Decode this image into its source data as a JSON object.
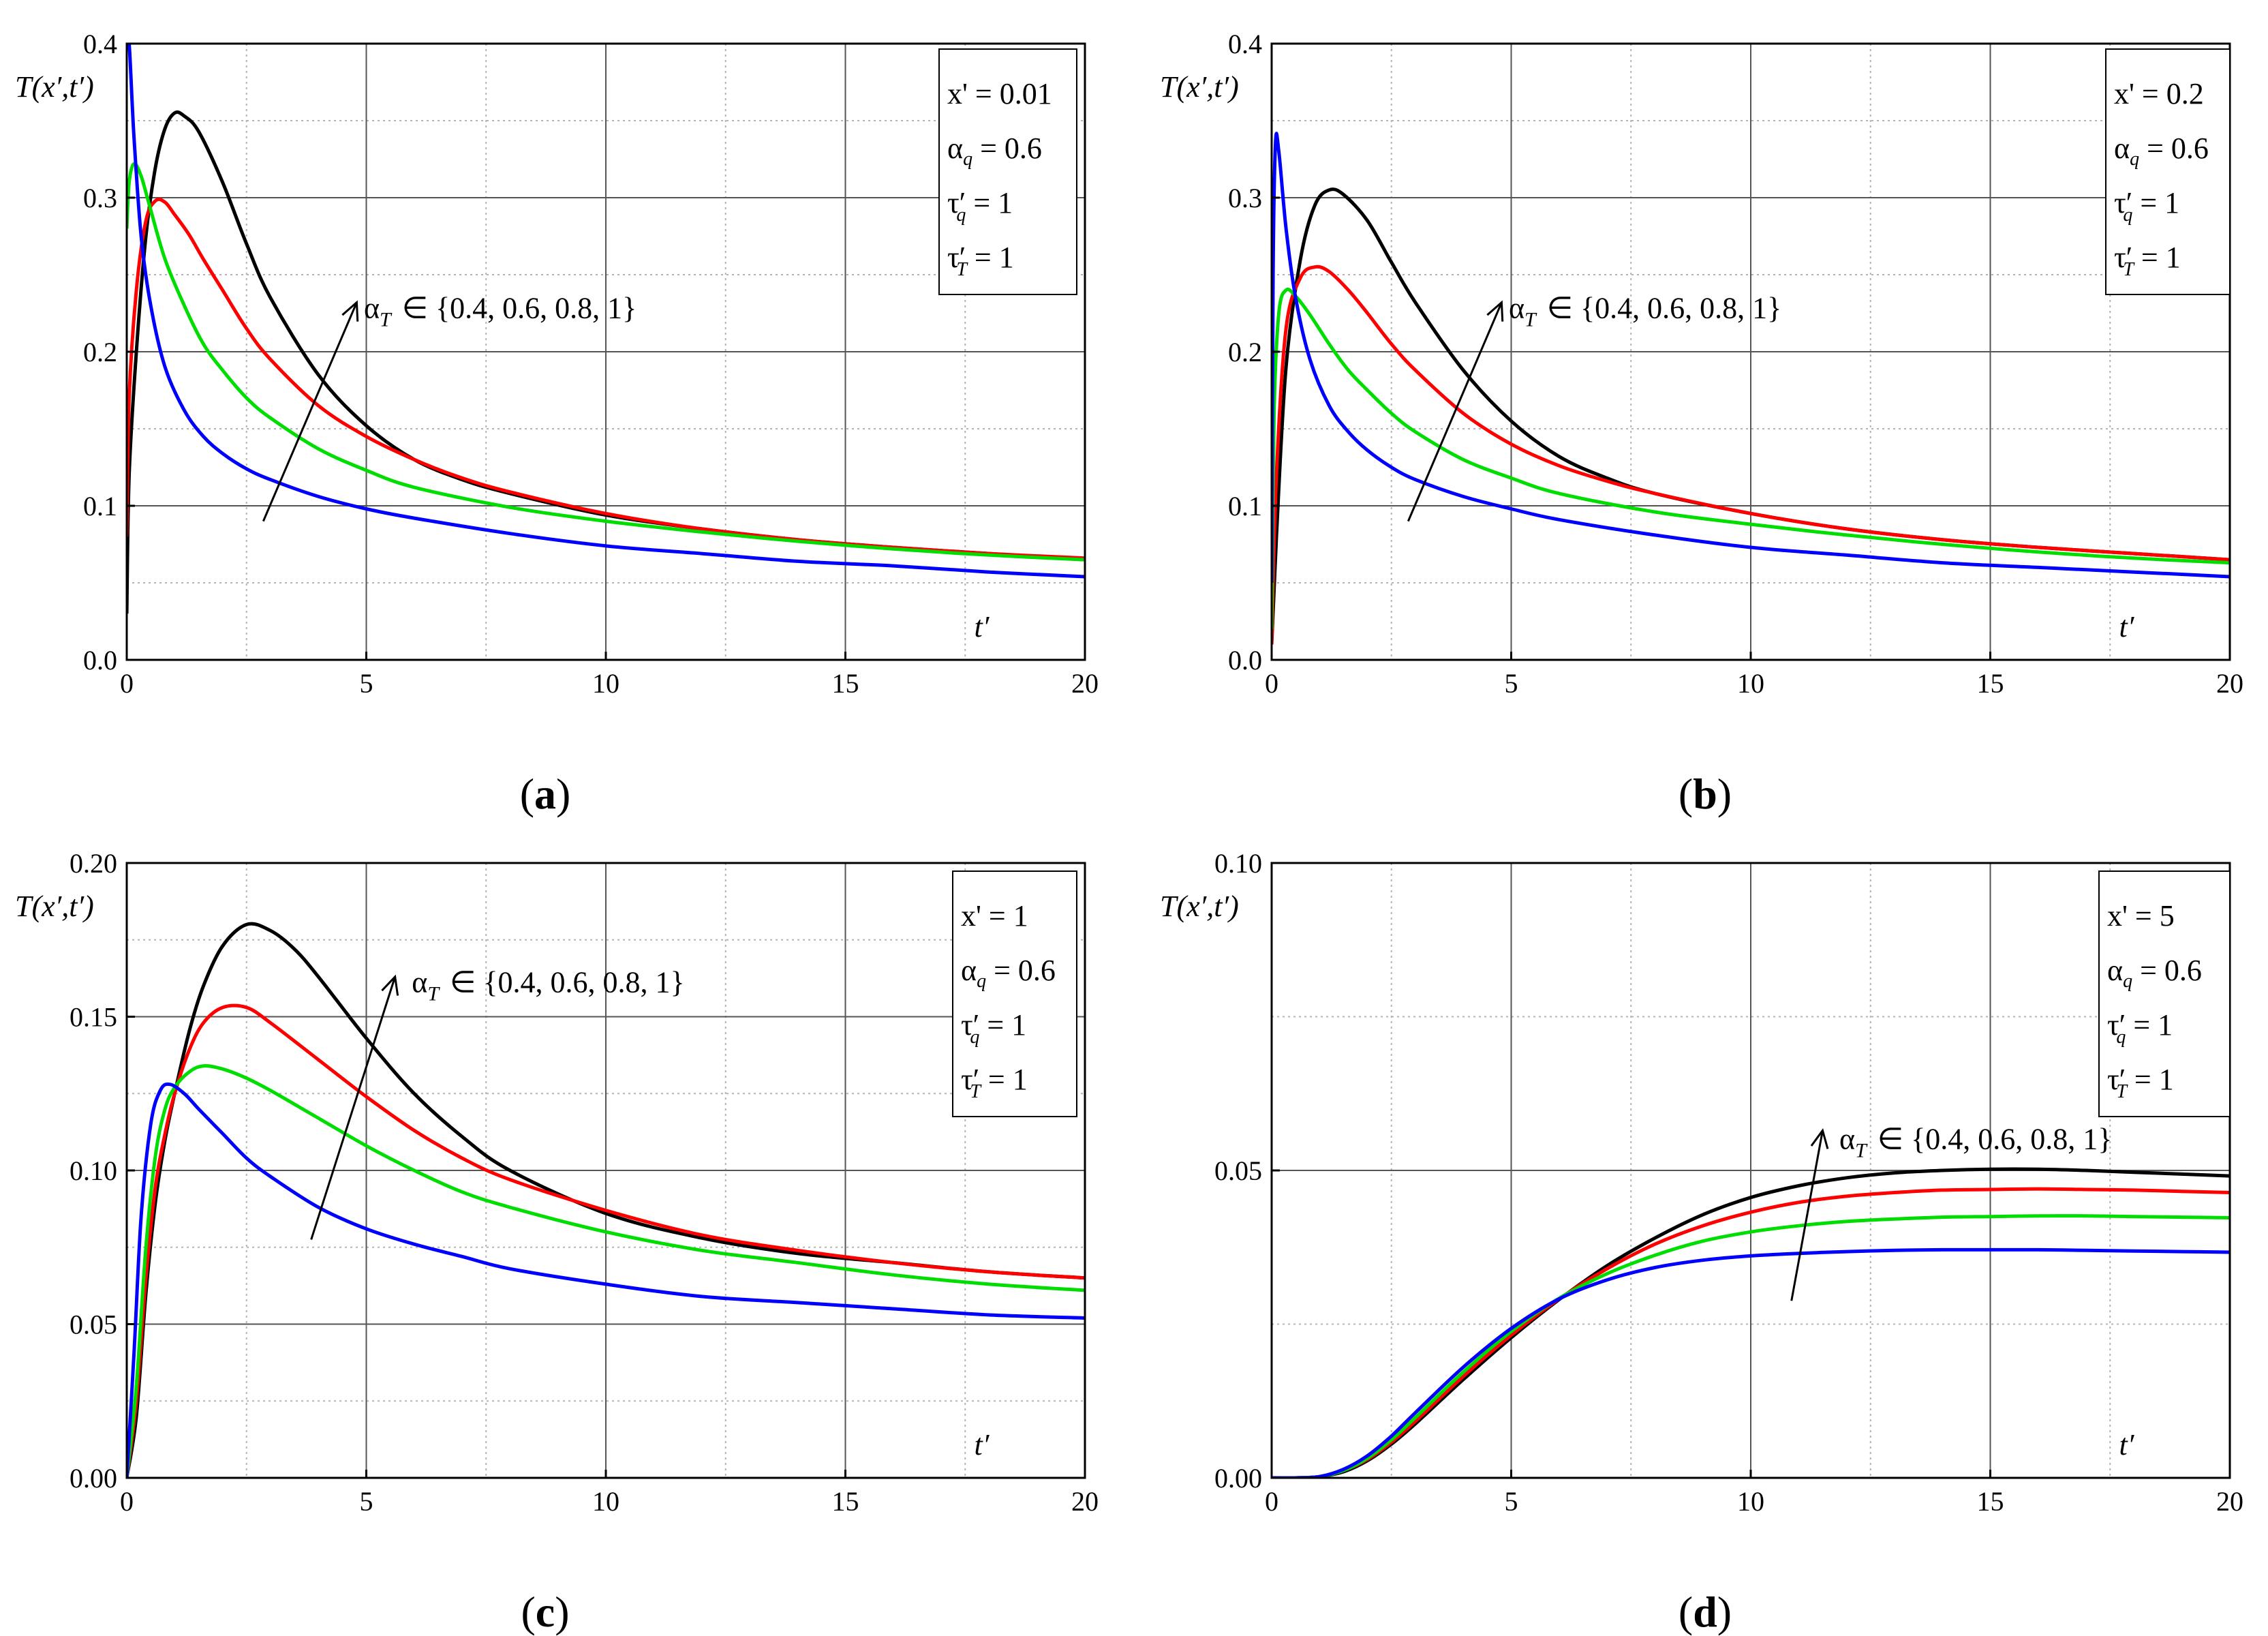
{
  "chart_data": [
    {
      "type": "line",
      "panel": "(a)",
      "caption_letter": "a",
      "xlabel": "t′",
      "ylabel": "T(x′,t′)",
      "xlim": [
        0,
        20
      ],
      "ylim": [
        0,
        0.4
      ],
      "xticks": [
        0,
        5,
        10,
        15,
        20
      ],
      "xtick_labels": [
        "0",
        "5",
        "10",
        "15",
        "20"
      ],
      "yticks": [
        0,
        0.1,
        0.2,
        0.3,
        0.4
      ],
      "ytick_labels": [
        "0.0",
        "0.1",
        "0.2",
        "0.3",
        "0.4"
      ],
      "legend_box": {
        "line1": "x' = 0.01",
        "alpha_q": "0.6",
        "tau_q": "1",
        "tau_T": "1"
      },
      "annotation": {
        "prefix": "α",
        "sub": "T",
        "text": "∈ {0.4, 0.6, 0.8, 1}",
        "arrow_from": [
          2.85,
          0.09
        ],
        "arrow_to": [
          4.8,
          0.232
        ],
        "label_at": [
          4.95,
          0.222
        ]
      },
      "series": [
        {
          "name": "α_T = 1",
          "color": "#000000",
          "x": [
            0,
            0.05,
            0.2,
            0.4,
            0.6,
            0.8,
            1.0,
            1.2,
            1.5,
            2,
            2.5,
            3,
            4,
            5,
            6,
            7,
            8,
            10,
            12,
            14,
            16,
            18,
            20
          ],
          "values": [
            0.03,
            0.12,
            0.2,
            0.275,
            0.32,
            0.345,
            0.355,
            0.353,
            0.343,
            0.31,
            0.27,
            0.235,
            0.185,
            0.152,
            0.13,
            0.117,
            0.108,
            0.094,
            0.085,
            0.078,
            0.073,
            0.069,
            0.065
          ]
        },
        {
          "name": "α_T = 0.8",
          "color": "#ff0000",
          "x": [
            0,
            0.05,
            0.2,
            0.4,
            0.6,
            0.8,
            1.0,
            1.3,
            1.6,
            2,
            2.5,
            3,
            4,
            5,
            6,
            7,
            8,
            10,
            12,
            14,
            16,
            18,
            20
          ],
          "values": [
            0.08,
            0.17,
            0.24,
            0.285,
            0.298,
            0.297,
            0.289,
            0.276,
            0.26,
            0.24,
            0.215,
            0.195,
            0.165,
            0.145,
            0.13,
            0.118,
            0.109,
            0.095,
            0.085,
            0.078,
            0.073,
            0.069,
            0.066
          ]
        },
        {
          "name": "α_T = 0.6",
          "color": "#00dd00",
          "x": [
            0,
            0.05,
            0.15,
            0.3,
            0.5,
            0.8,
            1.2,
            1.6,
            2,
            2.5,
            3,
            4,
            5,
            6,
            8,
            10,
            12,
            14,
            16,
            18,
            20
          ],
          "values": [
            0.28,
            0.31,
            0.322,
            0.314,
            0.292,
            0.26,
            0.23,
            0.205,
            0.188,
            0.17,
            0.157,
            0.137,
            0.123,
            0.112,
            0.099,
            0.09,
            0.083,
            0.077,
            0.072,
            0.068,
            0.065
          ]
        },
        {
          "name": "α_T = 0.4",
          "color": "#0000ff",
          "x": [
            0,
            0.05,
            0.15,
            0.3,
            0.5,
            0.8,
            1.2,
            1.6,
            2,
            2.5,
            3,
            4,
            5,
            6,
            8,
            10,
            12,
            14,
            16,
            18,
            20
          ],
          "values": [
            0.4,
            0.4,
            0.34,
            0.275,
            0.23,
            0.19,
            0.162,
            0.145,
            0.134,
            0.124,
            0.117,
            0.106,
            0.098,
            0.092,
            0.082,
            0.074,
            0.069,
            0.064,
            0.061,
            0.057,
            0.054
          ]
        }
      ]
    },
    {
      "type": "line",
      "panel": "(b)",
      "caption_letter": "b",
      "xlabel": "t′",
      "ylabel": "T(x′,t′)",
      "xlim": [
        0,
        20
      ],
      "ylim": [
        0,
        0.4
      ],
      "xticks": [
        0,
        5,
        10,
        15,
        20
      ],
      "xtick_labels": [
        "0",
        "5",
        "10",
        "15",
        "20"
      ],
      "yticks": [
        0,
        0.1,
        0.2,
        0.3,
        0.4
      ],
      "ytick_labels": [
        "0.0",
        "0.1",
        "0.2",
        "0.3",
        "0.4"
      ],
      "legend_box": {
        "line1": "x' = 0.2",
        "alpha_q": "0.6",
        "tau_q": "1",
        "tau_T": "1"
      },
      "annotation": {
        "prefix": "α",
        "sub": "T",
        "text": "∈ {0.4, 0.6, 0.8, 1}",
        "arrow_from": [
          2.85,
          0.09
        ],
        "arrow_to": [
          4.8,
          0.232
        ],
        "label_at": [
          4.95,
          0.222
        ]
      },
      "series": [
        {
          "name": "α_T = 1",
          "color": "#000000",
          "x": [
            0,
            0.1,
            0.3,
            0.6,
            0.9,
            1.2,
            1.5,
            2,
            2.5,
            3,
            4,
            5,
            6,
            7,
            8,
            10,
            12,
            14,
            16,
            18,
            20
          ],
          "values": [
            0.01,
            0.08,
            0.19,
            0.26,
            0.295,
            0.305,
            0.302,
            0.285,
            0.258,
            0.232,
            0.188,
            0.155,
            0.132,
            0.118,
            0.108,
            0.095,
            0.085,
            0.078,
            0.073,
            0.069,
            0.065
          ]
        },
        {
          "name": "α_T = 0.8",
          "color": "#ff0000",
          "x": [
            0,
            0.1,
            0.3,
            0.6,
            0.9,
            1.2,
            1.6,
            2,
            2.5,
            3,
            4,
            5,
            6,
            7,
            8,
            10,
            12,
            14,
            16,
            18,
            20
          ],
          "values": [
            0.01,
            0.12,
            0.215,
            0.248,
            0.255,
            0.252,
            0.24,
            0.225,
            0.205,
            0.188,
            0.16,
            0.14,
            0.126,
            0.116,
            0.108,
            0.095,
            0.085,
            0.078,
            0.073,
            0.069,
            0.065
          ]
        },
        {
          "name": "α_T = 0.6",
          "color": "#00dd00",
          "x": [
            0,
            0.05,
            0.15,
            0.3,
            0.5,
            0.8,
            1.2,
            1.6,
            2,
            2.5,
            3,
            4,
            5,
            6,
            8,
            10,
            12,
            14,
            16,
            18,
            20
          ],
          "values": [
            0.02,
            0.16,
            0.225,
            0.24,
            0.236,
            0.224,
            0.205,
            0.188,
            0.175,
            0.16,
            0.148,
            0.13,
            0.118,
            0.108,
            0.096,
            0.088,
            0.081,
            0.075,
            0.07,
            0.066,
            0.063
          ]
        },
        {
          "name": "α_T = 0.4",
          "color": "#0000ff",
          "x": [
            0,
            0.03,
            0.08,
            0.15,
            0.3,
            0.5,
            0.8,
            1.2,
            1.6,
            2,
            2.5,
            3,
            4,
            5,
            6,
            8,
            10,
            12,
            14,
            16,
            18,
            20
          ],
          "values": [
            0.05,
            0.25,
            0.335,
            0.33,
            0.28,
            0.235,
            0.195,
            0.165,
            0.148,
            0.136,
            0.125,
            0.117,
            0.106,
            0.098,
            0.091,
            0.081,
            0.073,
            0.068,
            0.063,
            0.06,
            0.057,
            0.054
          ]
        }
      ]
    },
    {
      "type": "line",
      "panel": "(c)",
      "caption_letter": "c",
      "xlabel": "t′",
      "ylabel": "T(x′,t′)",
      "xlim": [
        0,
        20
      ],
      "ylim": [
        0,
        0.2
      ],
      "xticks": [
        0,
        5,
        10,
        15,
        20
      ],
      "xtick_labels": [
        "0",
        "5",
        "10",
        "15",
        "20"
      ],
      "yticks": [
        0,
        0.05,
        0.1,
        0.15,
        0.2
      ],
      "ytick_labels": [
        "0.00",
        "0.05",
        "0.10",
        "0.15",
        "0.20"
      ],
      "legend_box": {
        "line1": "x' = 1",
        "alpha_q": "0.6",
        "tau_q": "1",
        "tau_T": "1"
      },
      "annotation": {
        "prefix": "α",
        "sub": "T",
        "text": "∈ {0.4, 0.6, 0.8, 1}",
        "arrow_from": [
          3.85,
          0.0775
        ],
        "arrow_to": [
          5.6,
          0.163
        ],
        "label_at": [
          5.95,
          0.158
        ]
      },
      "series": [
        {
          "name": "α_T = 1",
          "color": "#000000",
          "x": [
            0,
            0.2,
            0.4,
            0.6,
            0.8,
            1,
            1.3,
            1.6,
            2,
            2.5,
            3,
            3.5,
            4,
            5,
            6,
            7,
            8,
            10,
            12,
            14,
            16,
            18,
            20
          ],
          "values": [
            0,
            0.02,
            0.06,
            0.09,
            0.11,
            0.125,
            0.145,
            0.16,
            0.173,
            0.18,
            0.178,
            0.172,
            0.163,
            0.143,
            0.125,
            0.111,
            0.1,
            0.086,
            0.078,
            0.073,
            0.07,
            0.067,
            0.065
          ]
        },
        {
          "name": "α_T = 0.8",
          "color": "#ff0000",
          "x": [
            0,
            0.2,
            0.4,
            0.6,
            0.8,
            1,
            1.3,
            1.6,
            2,
            2.5,
            3,
            4,
            5,
            6,
            7,
            8,
            10,
            12,
            14,
            16,
            18,
            20
          ],
          "values": [
            0,
            0.025,
            0.065,
            0.095,
            0.112,
            0.125,
            0.139,
            0.148,
            0.153,
            0.153,
            0.148,
            0.136,
            0.124,
            0.113,
            0.104,
            0.097,
            0.087,
            0.079,
            0.074,
            0.07,
            0.067,
            0.065
          ]
        },
        {
          "name": "α_T = 0.6",
          "color": "#00dd00",
          "x": [
            0,
            0.2,
            0.4,
            0.6,
            0.8,
            1,
            1.3,
            1.6,
            2,
            2.5,
            3,
            4,
            5,
            6,
            7,
            8,
            10,
            12,
            14,
            16,
            18,
            20
          ],
          "values": [
            0,
            0.03,
            0.075,
            0.105,
            0.12,
            0.127,
            0.132,
            0.134,
            0.133,
            0.13,
            0.126,
            0.117,
            0.108,
            0.1,
            0.093,
            0.088,
            0.08,
            0.074,
            0.07,
            0.066,
            0.063,
            0.061
          ]
        },
        {
          "name": "α_T = 0.4",
          "color": "#0000ff",
          "x": [
            0,
            0.15,
            0.3,
            0.5,
            0.7,
            0.9,
            1.2,
            1.5,
            2,
            2.5,
            3,
            4,
            5,
            6,
            7,
            8,
            10,
            12,
            14,
            16,
            18,
            20
          ],
          "values": [
            0,
            0.04,
            0.085,
            0.115,
            0.126,
            0.128,
            0.125,
            0.12,
            0.112,
            0.104,
            0.098,
            0.088,
            0.081,
            0.076,
            0.072,
            0.068,
            0.063,
            0.059,
            0.057,
            0.055,
            0.053,
            0.052
          ]
        }
      ]
    },
    {
      "type": "line",
      "panel": "(d)",
      "caption_letter": "d",
      "xlabel": "t′",
      "ylabel": "T(x′,t′)",
      "xlim": [
        0,
        20
      ],
      "ylim": [
        0,
        0.1
      ],
      "xticks": [
        0,
        5,
        10,
        15,
        20
      ],
      "xtick_labels": [
        "0",
        "5",
        "10",
        "15",
        "20"
      ],
      "yticks": [
        0,
        0.05,
        0.1
      ],
      "ytick_labels": [
        "0.00",
        "0.05",
        "0.10"
      ],
      "legend_box": {
        "line1": "x' = 5",
        "alpha_q": "0.6",
        "tau_q": "1",
        "tau_T": "1"
      },
      "annotation": {
        "prefix": "α",
        "sub": "T",
        "text": "∈ {0.4, 0.6, 0.8, 1}",
        "arrow_from": [
          10.85,
          0.0288
        ],
        "arrow_to": [
          11.5,
          0.0565
        ],
        "label_at": [
          11.85,
          0.0535
        ]
      },
      "series": [
        {
          "name": "α_T = 1",
          "color": "#000000",
          "x": [
            0,
            0.5,
            1,
            1.5,
            2,
            2.5,
            3,
            4,
            5,
            6,
            7,
            8,
            9,
            10,
            11,
            12,
            13,
            14,
            15,
            16,
            17,
            18,
            19,
            20
          ],
          "values": [
            0,
            0,
            0.0002,
            0.001,
            0.0028,
            0.0055,
            0.0088,
            0.016,
            0.0228,
            0.029,
            0.0345,
            0.039,
            0.0428,
            0.0456,
            0.0475,
            0.0488,
            0.0496,
            0.05,
            0.0502,
            0.0502,
            0.05,
            0.0497,
            0.0494,
            0.0491
          ]
        },
        {
          "name": "α_T = 0.8",
          "color": "#ff0000",
          "x": [
            0,
            0.5,
            1,
            1.5,
            2,
            2.5,
            3,
            4,
            5,
            6,
            7,
            8,
            9,
            10,
            11,
            12,
            13,
            14,
            15,
            16,
            17,
            18,
            19,
            20
          ],
          "values": [
            0,
            0,
            0.0002,
            0.0012,
            0.003,
            0.0058,
            0.0092,
            0.0165,
            0.0232,
            0.0291,
            0.034,
            0.038,
            0.041,
            0.0432,
            0.0448,
            0.0458,
            0.0464,
            0.0468,
            0.0469,
            0.047,
            0.0469,
            0.0468,
            0.0466,
            0.0464
          ]
        },
        {
          "name": "α_T = 0.6",
          "color": "#00dd00",
          "x": [
            0,
            0.5,
            1,
            1.5,
            2,
            2.5,
            3,
            4,
            5,
            6,
            7,
            8,
            9,
            10,
            11,
            12,
            13,
            14,
            15,
            16,
            17,
            18,
            19,
            20
          ],
          "values": [
            0,
            0,
            0.0002,
            0.0012,
            0.0032,
            0.0062,
            0.0098,
            0.0172,
            0.0238,
            0.0292,
            0.0332,
            0.0362,
            0.0385,
            0.04,
            0.041,
            0.0417,
            0.0421,
            0.0424,
            0.0425,
            0.0426,
            0.0426,
            0.0425,
            0.0424,
            0.0423
          ]
        },
        {
          "name": "α_T = 0.4",
          "color": "#0000ff",
          "x": [
            0,
            0.5,
            1,
            1.5,
            2,
            2.5,
            3,
            4,
            5,
            6,
            7,
            8,
            9,
            10,
            11,
            12,
            13,
            14,
            15,
            16,
            17,
            18,
            19,
            20
          ],
          "values": [
            0,
            0,
            0.0002,
            0.0014,
            0.0036,
            0.0068,
            0.0106,
            0.018,
            0.0243,
            0.0291,
            0.0322,
            0.0342,
            0.0354,
            0.0361,
            0.0365,
            0.0368,
            0.037,
            0.0371,
            0.0371,
            0.0371,
            0.037,
            0.0369,
            0.0368,
            0.0367
          ]
        }
      ]
    }
  ]
}
